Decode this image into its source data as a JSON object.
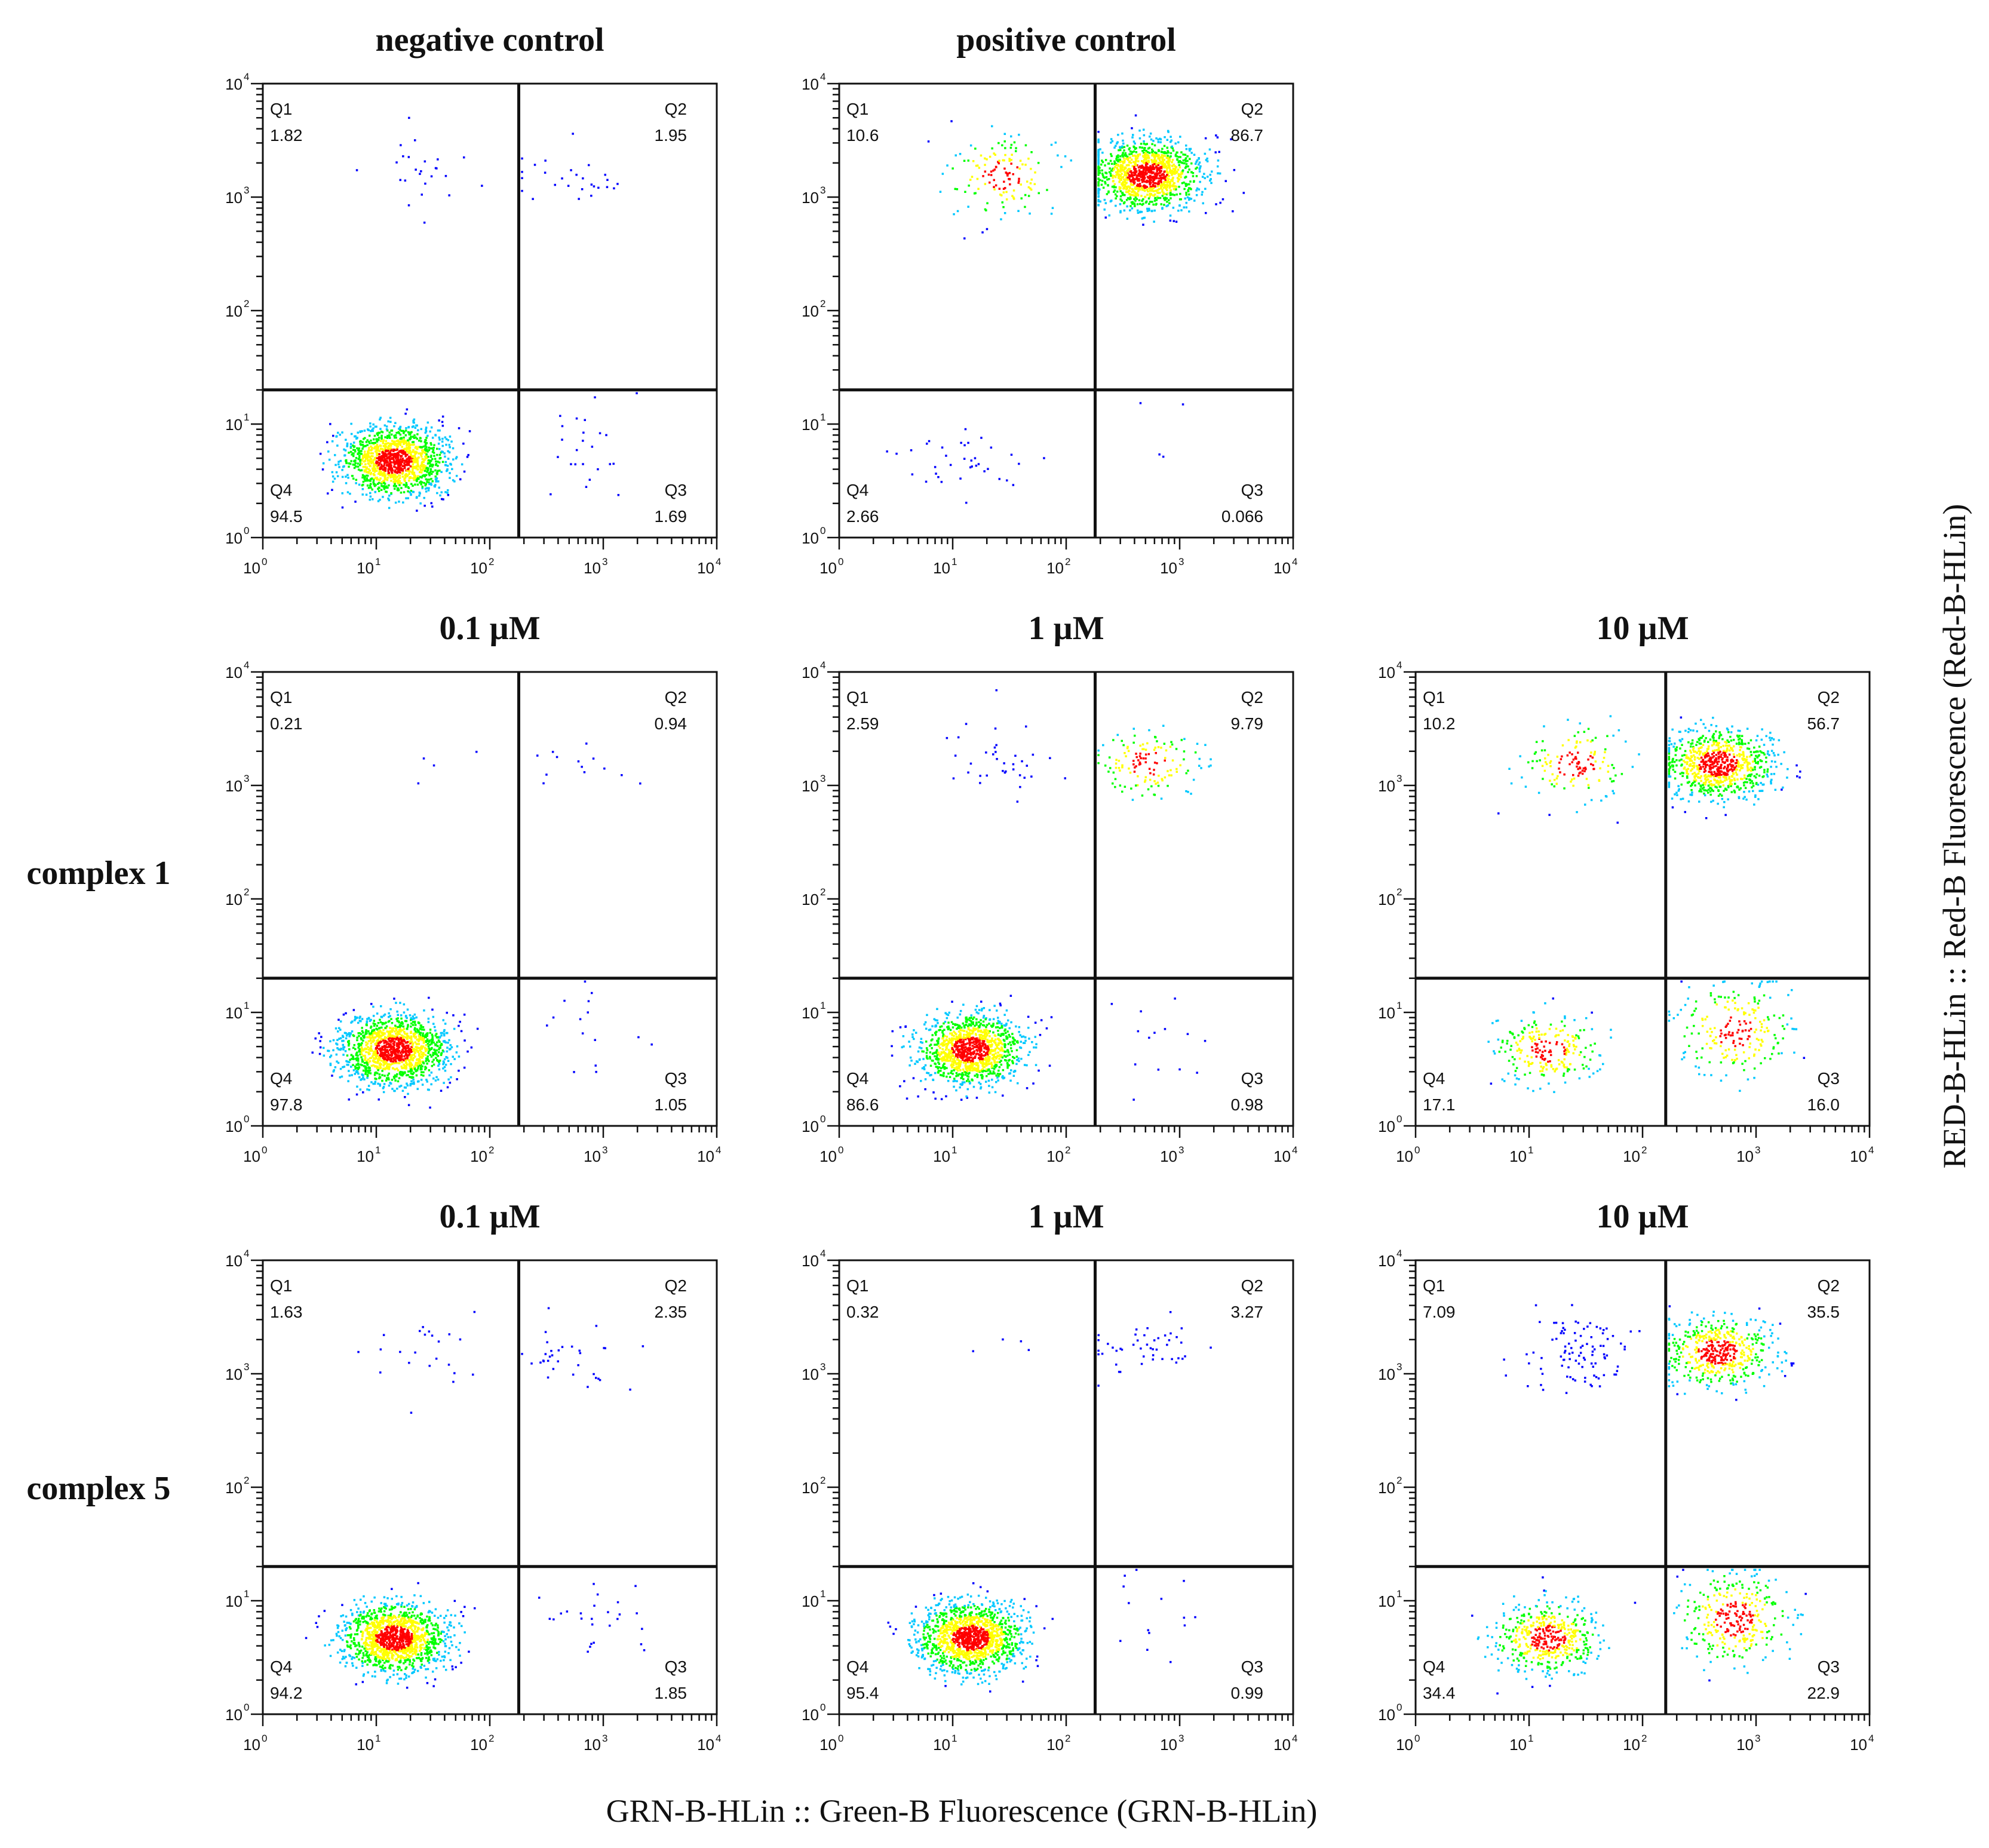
{
  "figure": {
    "x_axis_title": "GRN-B-HLin :: Green-B Fluorescence (GRN-B-HLin)",
    "y_axis_title": "RED-B-HLin :: Red-B Fluorescence (Red-B-HLin)",
    "row_labels": [
      "complex 1",
      "complex 5"
    ]
  },
  "chart_data": [
    {
      "type": "scatter",
      "scale": "log",
      "xlim": [
        1,
        10000
      ],
      "ylim": [
        1,
        10000
      ],
      "title": "negative control",
      "row": 0,
      "col": 0,
      "gate": {
        "x": 180,
        "y": 20
      },
      "quadrants": {
        "Q1": "1.82",
        "Q2": "1.95",
        "Q3": "1.69",
        "Q4": "94.5"
      },
      "tick_labels": [
        "10",
        "10",
        "10",
        "10",
        "10"
      ],
      "tick_exponents": [
        "0",
        "1",
        "2",
        "3",
        "4"
      ],
      "density_colormap": [
        "#0000ff",
        "#00c8ff",
        "#00ff00",
        "#ffff00",
        "#ff0000"
      ]
    },
    {
      "type": "scatter",
      "scale": "log",
      "xlim": [
        1,
        10000
      ],
      "ylim": [
        1,
        10000
      ],
      "title": "positive control",
      "row": 0,
      "col": 1,
      "gate": {
        "x": 180,
        "y": 20
      },
      "quadrants": {
        "Q1": "10.6",
        "Q2": "86.7",
        "Q3": "0.066",
        "Q4": "2.66"
      },
      "tick_labels": [
        "10",
        "10",
        "10",
        "10",
        "10"
      ],
      "tick_exponents": [
        "0",
        "1",
        "2",
        "3",
        "4"
      ],
      "density_colormap": [
        "#0000ff",
        "#00c8ff",
        "#00ff00",
        "#ffff00",
        "#ff0000"
      ]
    },
    {
      "type": "scatter",
      "scale": "log",
      "xlim": [
        1,
        10000
      ],
      "ylim": [
        1,
        10000
      ],
      "title": "0.1 µM",
      "row": 1,
      "col": 0,
      "gate": {
        "x": 180,
        "y": 20
      },
      "quadrants": {
        "Q1": "0.21",
        "Q2": "0.94",
        "Q3": "1.05",
        "Q4": "97.8"
      },
      "tick_labels": [
        "10",
        "10",
        "10",
        "10",
        "10"
      ],
      "tick_exponents": [
        "0",
        "1",
        "2",
        "3",
        "4"
      ],
      "density_colormap": [
        "#0000ff",
        "#00c8ff",
        "#00ff00",
        "#ffff00",
        "#ff0000"
      ]
    },
    {
      "type": "scatter",
      "scale": "log",
      "xlim": [
        1,
        10000
      ],
      "ylim": [
        1,
        10000
      ],
      "title": "1 µM",
      "row": 1,
      "col": 1,
      "gate": {
        "x": 180,
        "y": 20
      },
      "quadrants": {
        "Q1": "2.59",
        "Q2": "9.79",
        "Q3": "0.98",
        "Q4": "86.6"
      },
      "tick_labels": [
        "10",
        "10",
        "10",
        "10",
        "10"
      ],
      "tick_exponents": [
        "0",
        "1",
        "2",
        "3",
        "4"
      ],
      "density_colormap": [
        "#0000ff",
        "#00c8ff",
        "#00ff00",
        "#ffff00",
        "#ff0000"
      ]
    },
    {
      "type": "scatter",
      "scale": "log",
      "xlim": [
        1,
        10000
      ],
      "ylim": [
        1,
        10000
      ],
      "title": "10 µM",
      "row": 1,
      "col": 2,
      "gate": {
        "x": 160,
        "y": 20
      },
      "quadrants": {
        "Q1": "10.2",
        "Q2": "56.7",
        "Q3": "16.0",
        "Q4": "17.1"
      },
      "tick_labels": [
        "10",
        "10",
        "10",
        "10",
        "10"
      ],
      "tick_exponents": [
        "0",
        "1",
        "2",
        "3",
        "4"
      ],
      "density_colormap": [
        "#0000ff",
        "#00c8ff",
        "#00ff00",
        "#ffff00",
        "#ff0000"
      ]
    },
    {
      "type": "scatter",
      "scale": "log",
      "xlim": [
        1,
        10000
      ],
      "ylim": [
        1,
        10000
      ],
      "title": "0.1 µM",
      "row": 2,
      "col": 0,
      "gate": {
        "x": 180,
        "y": 20
      },
      "quadrants": {
        "Q1": "1.63",
        "Q2": "2.35",
        "Q3": "1.85",
        "Q4": "94.2"
      },
      "tick_labels": [
        "10",
        "10",
        "10",
        "10",
        "10"
      ],
      "tick_exponents": [
        "0",
        "1",
        "2",
        "3",
        "4"
      ],
      "density_colormap": [
        "#0000ff",
        "#00c8ff",
        "#00ff00",
        "#ffff00",
        "#ff0000"
      ]
    },
    {
      "type": "scatter",
      "scale": "log",
      "xlim": [
        1,
        10000
      ],
      "ylim": [
        1,
        10000
      ],
      "title": "1 µM",
      "row": 2,
      "col": 1,
      "gate": {
        "x": 180,
        "y": 20
      },
      "quadrants": {
        "Q1": "0.32",
        "Q2": "3.27",
        "Q3": "0.99",
        "Q4": "95.4"
      },
      "tick_labels": [
        "10",
        "10",
        "10",
        "10",
        "10"
      ],
      "tick_exponents": [
        "0",
        "1",
        "2",
        "3",
        "4"
      ],
      "density_colormap": [
        "#0000ff",
        "#00c8ff",
        "#00ff00",
        "#ffff00",
        "#ff0000"
      ]
    },
    {
      "type": "scatter",
      "scale": "log",
      "xlim": [
        1,
        10000
      ],
      "ylim": [
        1,
        10000
      ],
      "title": "10 µM",
      "row": 2,
      "col": 2,
      "gate": {
        "x": 160,
        "y": 20
      },
      "quadrants": {
        "Q1": "7.09",
        "Q2": "35.5",
        "Q3": "22.9",
        "Q4": "34.4"
      },
      "tick_labels": [
        "10",
        "10",
        "10",
        "10",
        "10"
      ],
      "tick_exponents": [
        "0",
        "1",
        "2",
        "3",
        "4"
      ],
      "density_colormap": [
        "#0000ff",
        "#00c8ff",
        "#00ff00",
        "#ffff00",
        "#ff0000"
      ]
    }
  ]
}
